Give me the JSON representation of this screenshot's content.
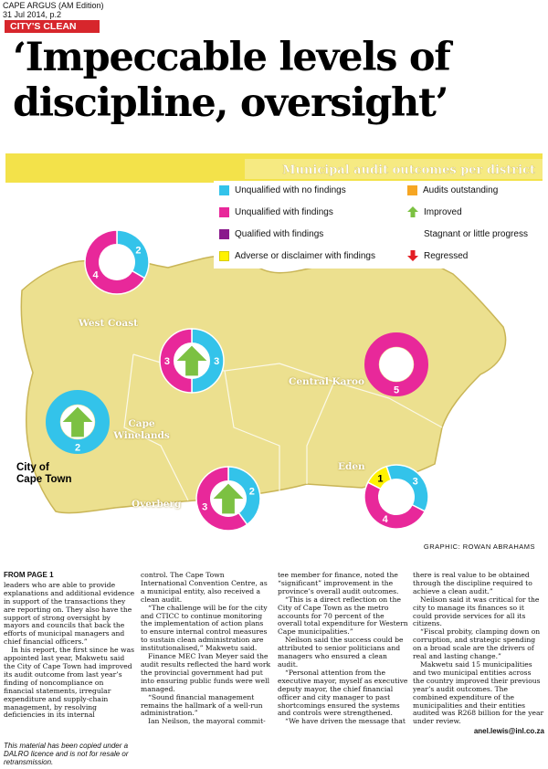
{
  "source": {
    "publication": "CAPE ARGUS (AM Edition)",
    "date_page": "31 Jul 2014, p.2"
  },
  "kicker": "CITY'S CLEAN AUDIT",
  "headline": {
    "line1": "‘Impeccable levels of",
    "line2": "discipline, oversight’"
  },
  "graphic": {
    "banner_title": "Municipal audit outcomes per district",
    "credit": "GRAPHIC: ROWAN ABRAHAMS",
    "colors": {
      "band": "#f3e24a",
      "map": "#ece08f",
      "map_edge": "#c9b556",
      "banner": "#f6ea82",
      "cyan": "#33c3ea",
      "magenta": "#e8289a",
      "purple": "#8a1a8c",
      "yellow": "#fff200",
      "orange": "#f6a623",
      "green": "#7cc142",
      "red": "#e31e24"
    },
    "legend": [
      {
        "label": "Unqualified with no findings",
        "icon": "cyan-square-icon"
      },
      {
        "label": "Unqualified with findings",
        "icon": "magenta-square-icon"
      },
      {
        "label": "Qualified with findings",
        "icon": "purple-square-icon"
      },
      {
        "label": "Adverse or disclaimer with findings",
        "icon": "yellow-square-icon"
      },
      {
        "label": "Audits outstanding",
        "icon": "orange-square-icon"
      },
      {
        "label": "Improved",
        "icon": "green-up-arrow-icon"
      },
      {
        "label": "Stagnant or little progress",
        "icon": ""
      },
      {
        "label": "Regressed",
        "icon": "red-down-arrow-icon"
      }
    ],
    "regions": [
      "West Coast",
      "Central Karoo",
      "Cape Winelands",
      "Eden",
      "Overberg"
    ],
    "city_label": [
      "City of",
      "Cape Town"
    ],
    "districts": [
      {
        "name": "West Coast",
        "segments": [
          {
            "value": 2,
            "color": "cyan"
          },
          {
            "value": 4,
            "color": "magenta"
          }
        ],
        "labels": [
          "2",
          "4"
        ],
        "arrow": ""
      },
      {
        "name": "Cape Winelands",
        "segments": [
          {
            "value": 3,
            "color": "cyan"
          },
          {
            "value": 3,
            "color": "magenta"
          }
        ],
        "labels": [
          "3",
          "3"
        ],
        "arrow": "improved"
      },
      {
        "name": "Central Karoo",
        "segments": [
          {
            "value": 5,
            "color": "magenta"
          }
        ],
        "labels": [
          "5"
        ],
        "arrow": ""
      },
      {
        "name": "City of Cape Town",
        "segments": [
          {
            "value": 2,
            "color": "cyan"
          }
        ],
        "labels": [
          "2"
        ],
        "arrow": "improved"
      },
      {
        "name": "Overberg",
        "segments": [
          {
            "value": 2,
            "color": "cyan"
          },
          {
            "value": 3,
            "color": "magenta"
          }
        ],
        "labels": [
          "2",
          "3"
        ],
        "arrow": "improved"
      },
      {
        "name": "Eden",
        "segments": [
          {
            "value": 3,
            "color": "cyan"
          },
          {
            "value": 4,
            "color": "magenta"
          },
          {
            "value": 1,
            "color": "yellow"
          }
        ],
        "labels": [
          "3",
          "4",
          "1"
        ],
        "arrow": ""
      }
    ]
  },
  "article": {
    "from_page": "FROM PAGE 1",
    "col1": [
      "leaders who are able to provide explanations and additional evidence in support of the transactions they are reporting on. They also have the support of strong oversight by mayors and councils that back the efforts of municipal managers and chief financial officers.”",
      "In his report, the first since he was appointed last year, Makwetu said the City of Cape Town had improved its audit outcome from last year’s finding of noncompliance on financial statements, irregular expenditure and supply-chain management, by resolving deficiencies in its internal"
    ],
    "col2": [
      "control. The Cape Town International Convention Centre, as a municipal entity, also received a clean audit.",
      "“The challenge will be for the city and CTICC to continue monitoring the implementation of action plans to ensure internal control measures to sustain clean administration are institutionalised,” Makwetu said.",
      "Finance MEC Ivan Meyer said the audit results reflected the hard work the provincial government had put into ensuring public funds were well managed.",
      "“Sound financial management remains the hallmark of a well-run administration.”",
      "Ian Neilson, the mayoral commit-"
    ],
    "col3": [
      "tee member for finance, noted the “significant” improvement in the province’s overall audit outcomes.",
      "“This is a direct reflection on the City of Cape Town as the metro accounts for 70 percent of the overall total expenditure for Western Cape municipalities.”",
      "Neilson said the success could be attributed to senior politicians and managers who ensured a clean audit.",
      "“Personal attention from the executive mayor, myself as executive deputy mayor, the chief financial officer and city manager to past shortcomings ensured the systems and controls were strengthened.",
      "“We have driven the message that"
    ],
    "col4": [
      "there is real value to be obtained through the discipline required to achieve a clean audit.”",
      "Neilson said it was critical for the city to manage its finances so it could provide services for all its citizens.",
      "“Fiscal probity, clamping down on corruption, and strategic spending on a broad scale are the drivers of real and lasting change.”",
      "Makwetu said 15 municipalities and two municipal entities across the country improved their previous year’s audit outcomes. The combined expenditure of the municipalities and their entities audited was R268 billion for the year under review."
    ],
    "byline": "anel.lewis@inl.co.za"
  },
  "disclaimer": "This material has been copied under a DALRO licence and is not for resale or retransmission."
}
